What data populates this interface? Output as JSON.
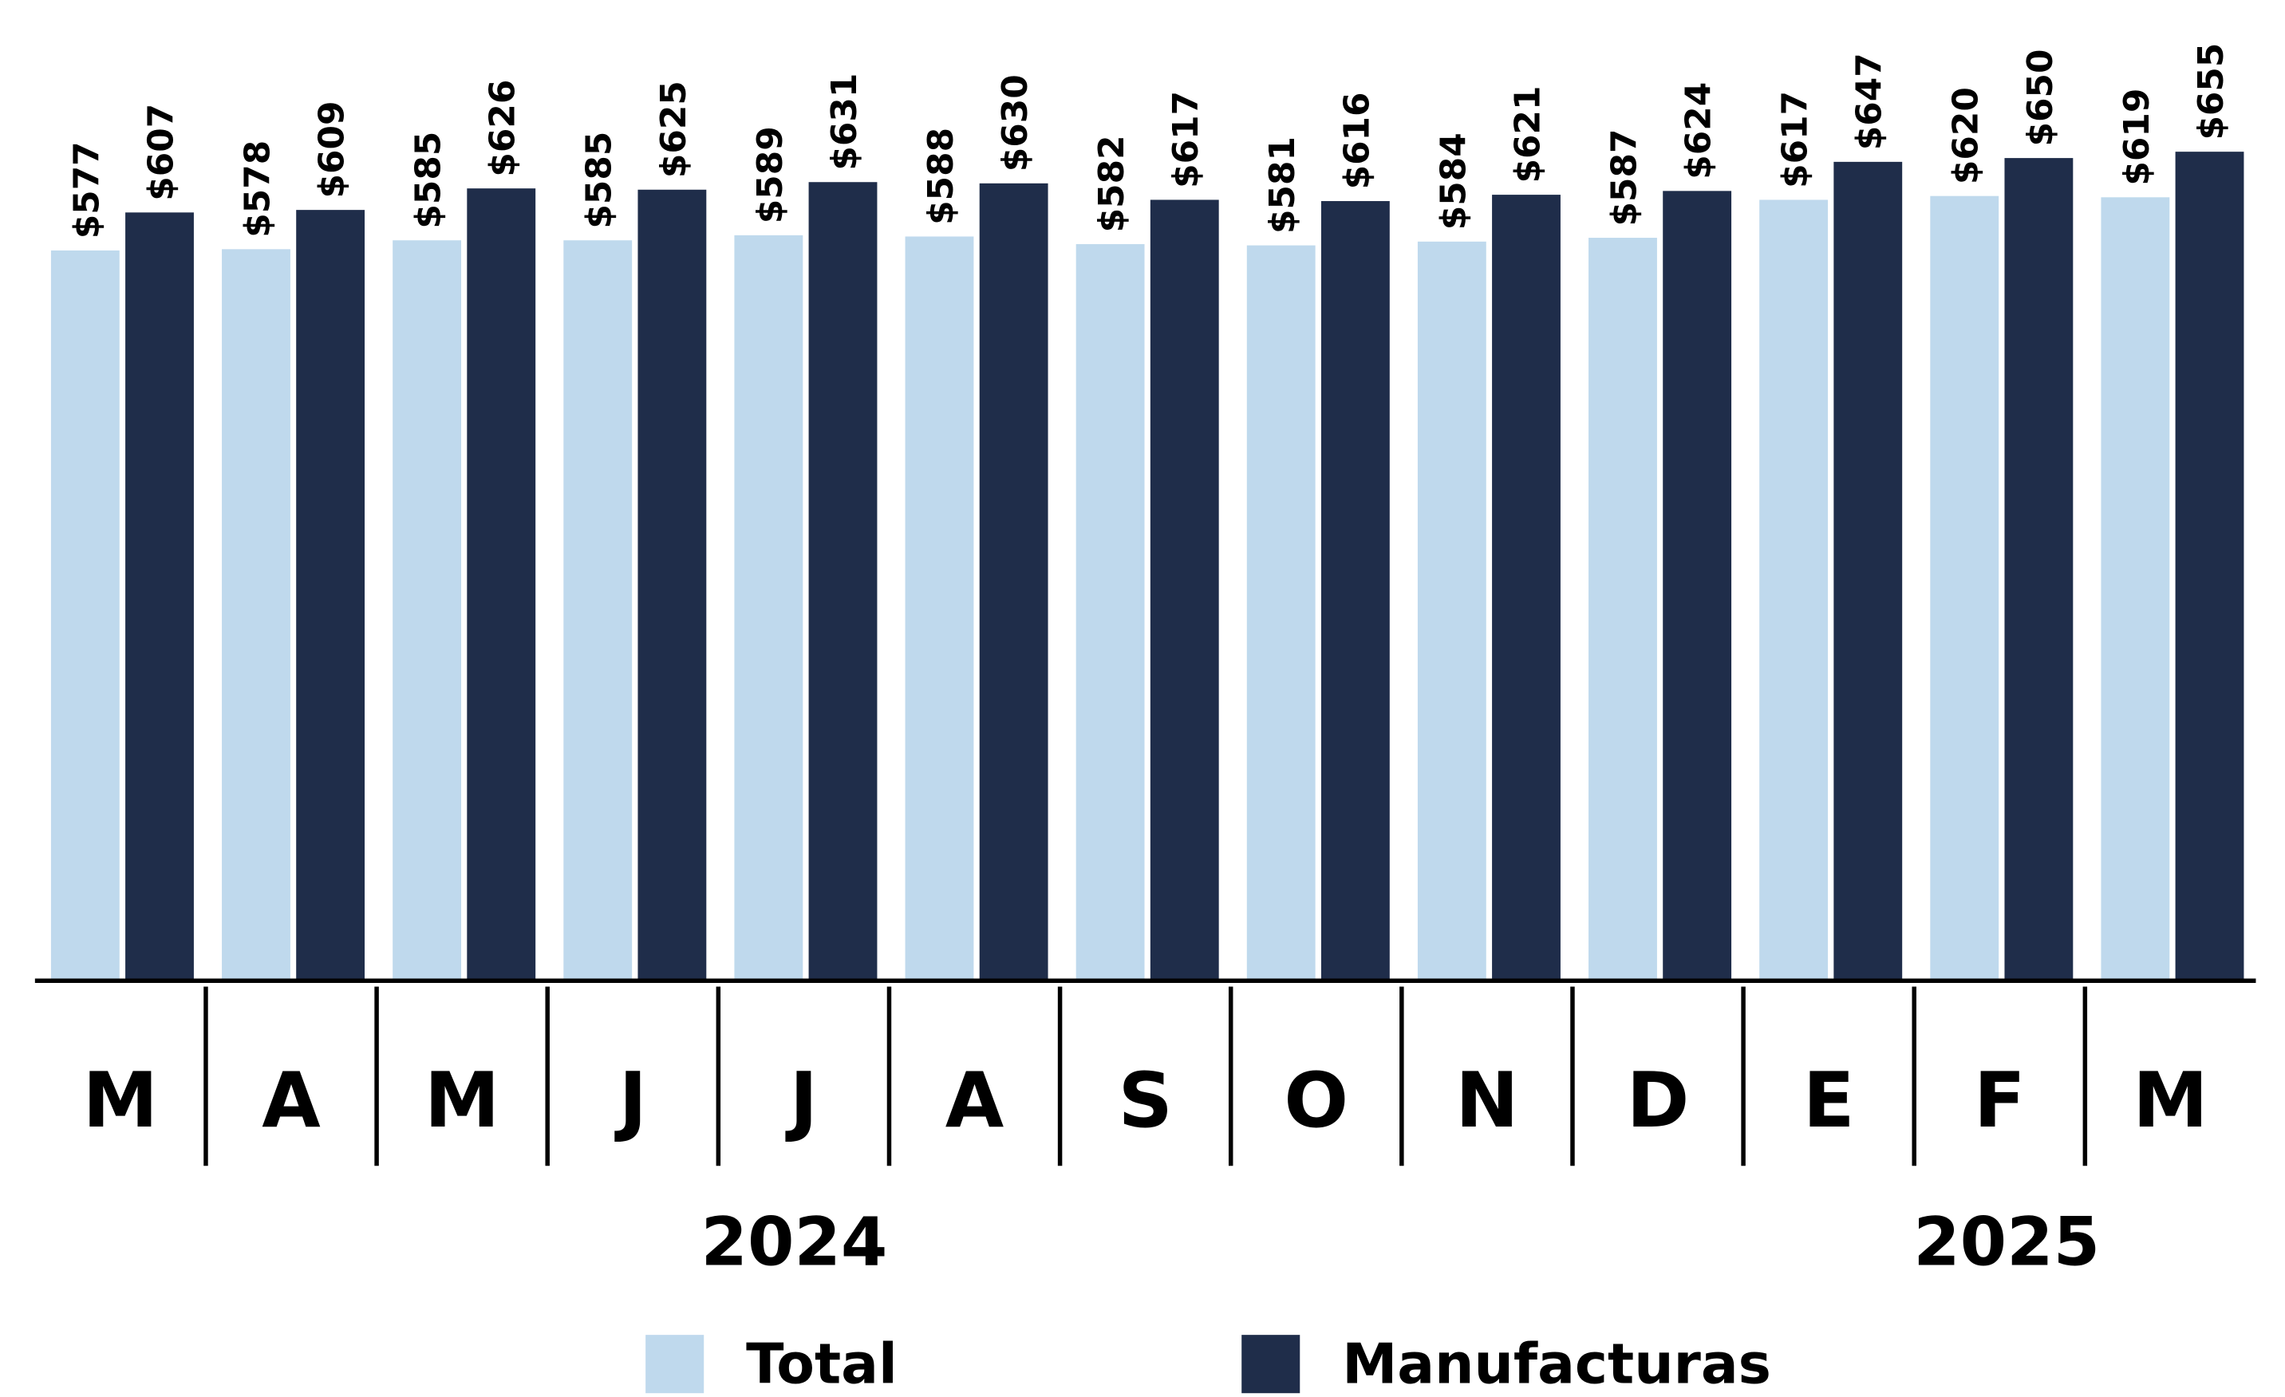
{
  "chart_data": {
    "type": "bar",
    "categories": [
      "M",
      "A",
      "M",
      "J",
      "J",
      "A",
      "S",
      "O",
      "N",
      "D",
      "E",
      "F",
      "M"
    ],
    "group_labels": [
      "2024",
      "2025"
    ],
    "series": [
      {
        "name": "Total",
        "color": "#bfd9ed",
        "values": [
          577,
          578,
          585,
          585,
          589,
          588,
          582,
          581,
          584,
          587,
          617,
          620,
          619
        ],
        "value_labels": [
          "$577",
          "$578",
          "$585",
          "$585",
          "$589",
          "$588",
          "$582",
          "$581",
          "$584",
          "$587",
          "$617",
          "$620",
          "$619"
        ]
      },
      {
        "name": "Manufacturas",
        "color": "#1f2d4a",
        "values": [
          607,
          609,
          626,
          625,
          631,
          630,
          617,
          616,
          621,
          624,
          647,
          650,
          655
        ],
        "value_labels": [
          "$607",
          "$609",
          "$626",
          "$625",
          "$631",
          "$630",
          "$617",
          "$616",
          "$621",
          "$624",
          "$647",
          "$650",
          "$655"
        ]
      }
    ],
    "ylim": [
      0,
      700
    ],
    "legend": "bottom"
  }
}
